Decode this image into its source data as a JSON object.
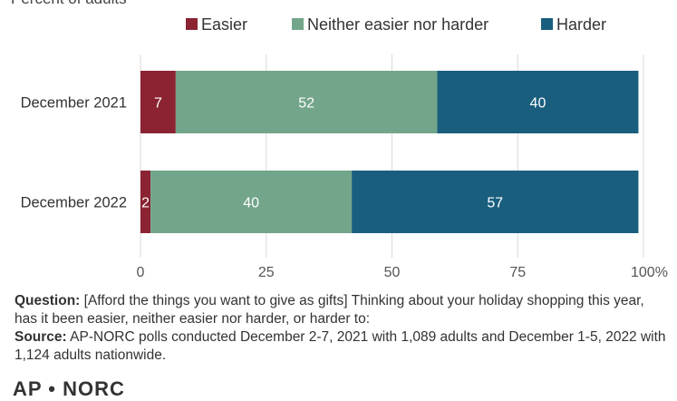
{
  "header": {
    "subtitle": "Percent of adults"
  },
  "chart_data": {
    "type": "bar",
    "orientation": "horizontal",
    "stacked": true,
    "categories": [
      "December 2021",
      "December 2022"
    ],
    "series": [
      {
        "name": "Easier",
        "color": "#8b2332",
        "values": [
          7,
          2
        ]
      },
      {
        "name": "Neither easier nor harder",
        "color": "#72a58a",
        "values": [
          52,
          40
        ]
      },
      {
        "name": "Harder",
        "color": "#1a5e7e",
        "values": [
          40,
          57
        ]
      }
    ],
    "xlim": [
      0,
      100
    ],
    "xticks": [
      "0",
      "25",
      "50",
      "75",
      "100%"
    ],
    "xtick_values": [
      0,
      25,
      50,
      75,
      100
    ],
    "grid": true,
    "legend": "top"
  },
  "notes": {
    "question_label": "Question:",
    "question_text": "[Afford the things you want to give as gifts] Thinking about your holiday shopping this year, has it been easier, neither easier nor harder, or harder to:",
    "source_label": "Source:",
    "source_text": "AP-NORC polls conducted December 2-7, 2021 with 1,089 adults and December 1-5, 2022 with 1,124 adults nationwide."
  },
  "logo": {
    "text": "AP • NORC"
  }
}
